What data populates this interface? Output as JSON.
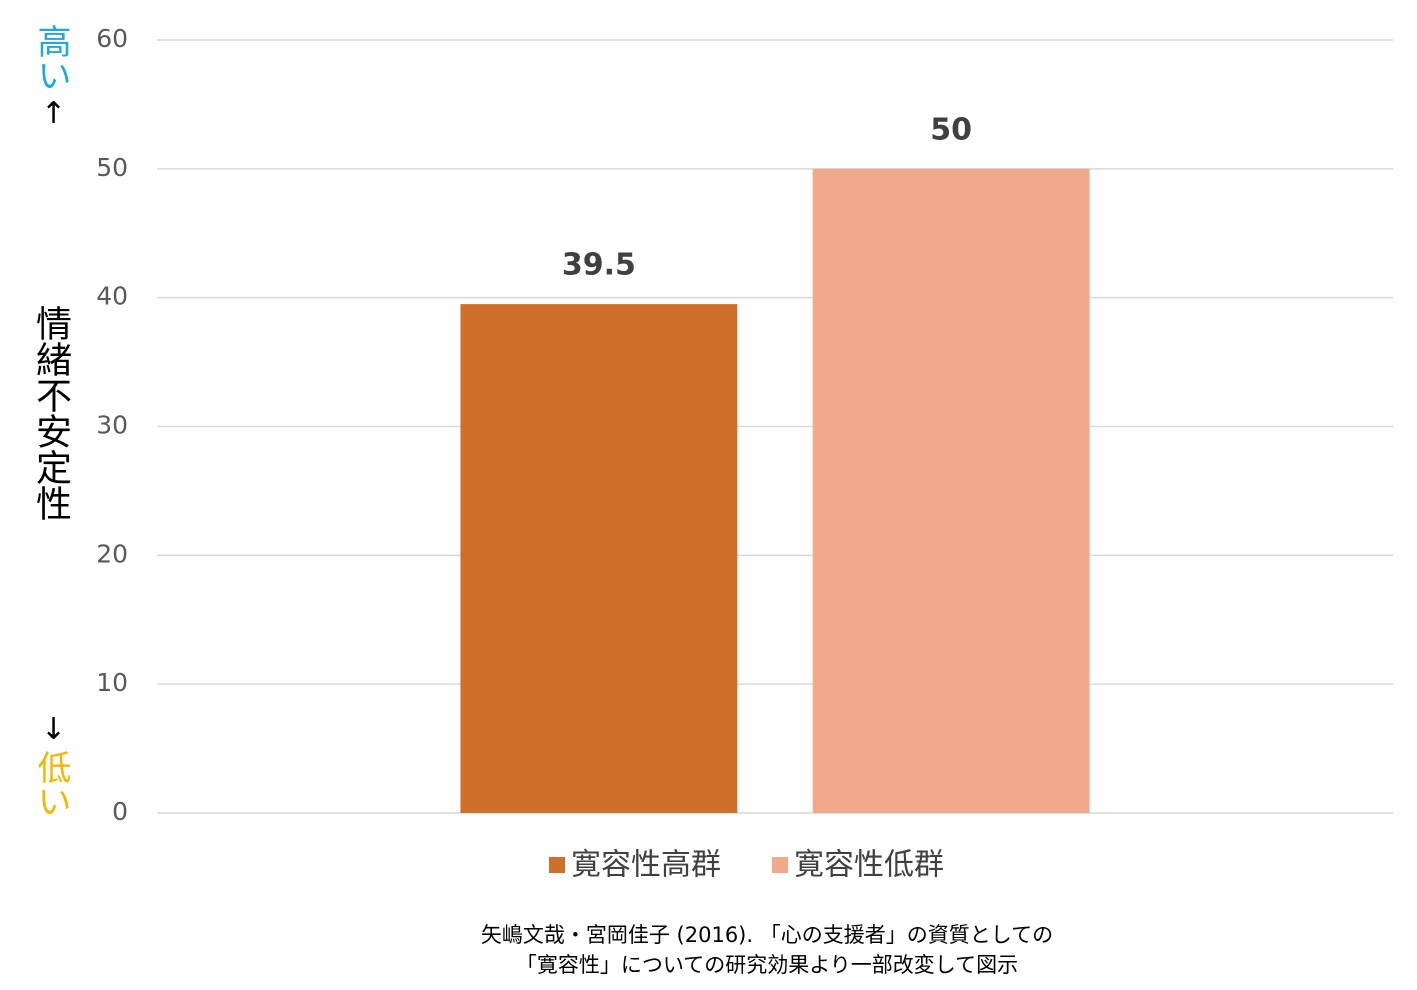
{
  "chart_data": {
    "type": "bar",
    "categories": [
      null
    ],
    "series": [
      {
        "name": "寛容性高群",
        "color": "#d06f2a",
        "values": [
          39.5
        ]
      },
      {
        "name": "寛容性低群",
        "color": "#f0a98a",
        "values": [
          50
        ]
      }
    ],
    "ylim": [
      0,
      60
    ],
    "yticks": [
      0,
      10,
      20,
      30,
      40,
      50,
      60
    ],
    "grid": true,
    "y_label": "情緒不安定性",
    "y_annotations": {
      "high": "高い",
      "up_arrow": "↑",
      "down_arrow": "↓",
      "low": "低い"
    },
    "legend": "bottom",
    "source": [
      "矢嶋文哉・宮岡佳子 (2016). 「心の支援者」の資質としての",
      "「寛容性」についての研究効果より一部改変して図示"
    ]
  }
}
